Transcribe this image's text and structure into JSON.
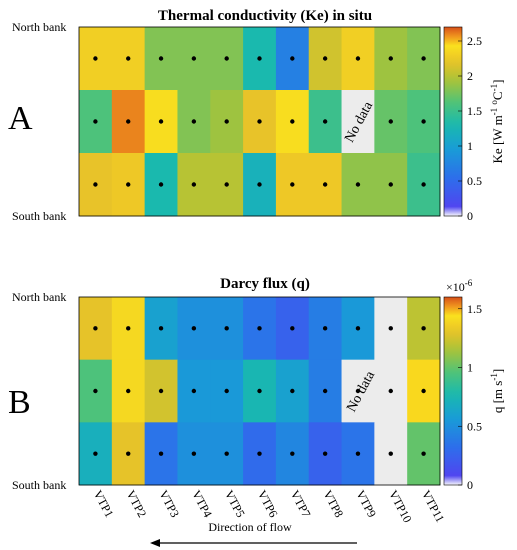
{
  "chart_data": [
    {
      "type": "heatmap",
      "panel_label": "A",
      "title": "Thermal conductivity (Ke) in situ",
      "row_labels_top": "North bank",
      "row_labels_bottom": "South bank",
      "columns": [
        "VTP1",
        "VTP2",
        "VTP3",
        "VTP4",
        "VTP5",
        "VTP6",
        "VTP7",
        "VTP8",
        "VTP9",
        "VTP10",
        "VTP11"
      ],
      "rows": [
        "north",
        "middle",
        "south"
      ],
      "values": [
        [
          2.3,
          2.3,
          1.8,
          1.8,
          1.8,
          1.3,
          0.7,
          2.1,
          2.3,
          1.9,
          1.8
        ],
        [
          1.6,
          2.6,
          2.4,
          1.8,
          1.9,
          2.2,
          2.4,
          1.5,
          null,
          1.7,
          1.6
        ],
        [
          2.2,
          2.25,
          1.3,
          2.0,
          2.0,
          1.2,
          2.25,
          2.25,
          1.85,
          1.85,
          1.5
        ]
      ],
      "no_data_label": "No data",
      "colorbar": {
        "label": "Ke [W m-1 oC-1]",
        "label_parts": {
          "main": "Ke [W m",
          "sup1": "-1",
          "mid": " ",
          "sup2": "o",
          "mid2": "C",
          "sup3": "-1",
          "end": "]"
        },
        "range": [
          0,
          2.7
        ],
        "ticks": [
          0,
          0.5,
          1,
          1.5,
          2,
          2.5
        ],
        "tick_labels": [
          "0",
          "0.5",
          "1",
          "1.5",
          "2",
          "2.5"
        ]
      }
    },
    {
      "type": "heatmap",
      "panel_label": "B",
      "title": "Darcy flux (q)",
      "row_labels_top": "North bank",
      "row_labels_bottom": "South bank",
      "columns": [
        "VTP1",
        "VTP2",
        "VTP3",
        "VTP4",
        "VTP5",
        "VTP6",
        "VTP7",
        "VTP8",
        "VTP9",
        "VTP10",
        "VTP11"
      ],
      "rows": [
        "north",
        "middle",
        "south"
      ],
      "values": [
        [
          1.3,
          1.4,
          0.6,
          0.5,
          0.5,
          0.35,
          0.25,
          0.4,
          0.55,
          null,
          1.2
        ],
        [
          0.95,
          1.4,
          1.25,
          0.55,
          0.55,
          0.75,
          0.6,
          0.4,
          null,
          null,
          1.45
        ],
        [
          0.7,
          1.3,
          0.35,
          0.5,
          0.5,
          0.3,
          0.45,
          0.25,
          0.35,
          null,
          1.0
        ]
      ],
      "dot_rows": [
        [
          true,
          true,
          true,
          true,
          true,
          true,
          true,
          true,
          true,
          true,
          true
        ],
        [
          true,
          true,
          true,
          true,
          true,
          true,
          true,
          true,
          true,
          true,
          true
        ],
        [
          true,
          true,
          true,
          true,
          true,
          true,
          true,
          true,
          true,
          true,
          true
        ]
      ],
      "no_data_label": "No data",
      "colorbar": {
        "label": "q [m s-1]",
        "label_parts": {
          "main": "q [m s",
          "sup1": "-1",
          "end": "]"
        },
        "exponent_label": "×10",
        "exponent_power": "-6",
        "range": [
          0,
          1.6
        ],
        "ticks": [
          0,
          0.5,
          1,
          1.5
        ],
        "tick_labels": [
          "0",
          "0.5",
          "1",
          "1.5"
        ]
      }
    }
  ],
  "flow_label": "Direction of flow"
}
